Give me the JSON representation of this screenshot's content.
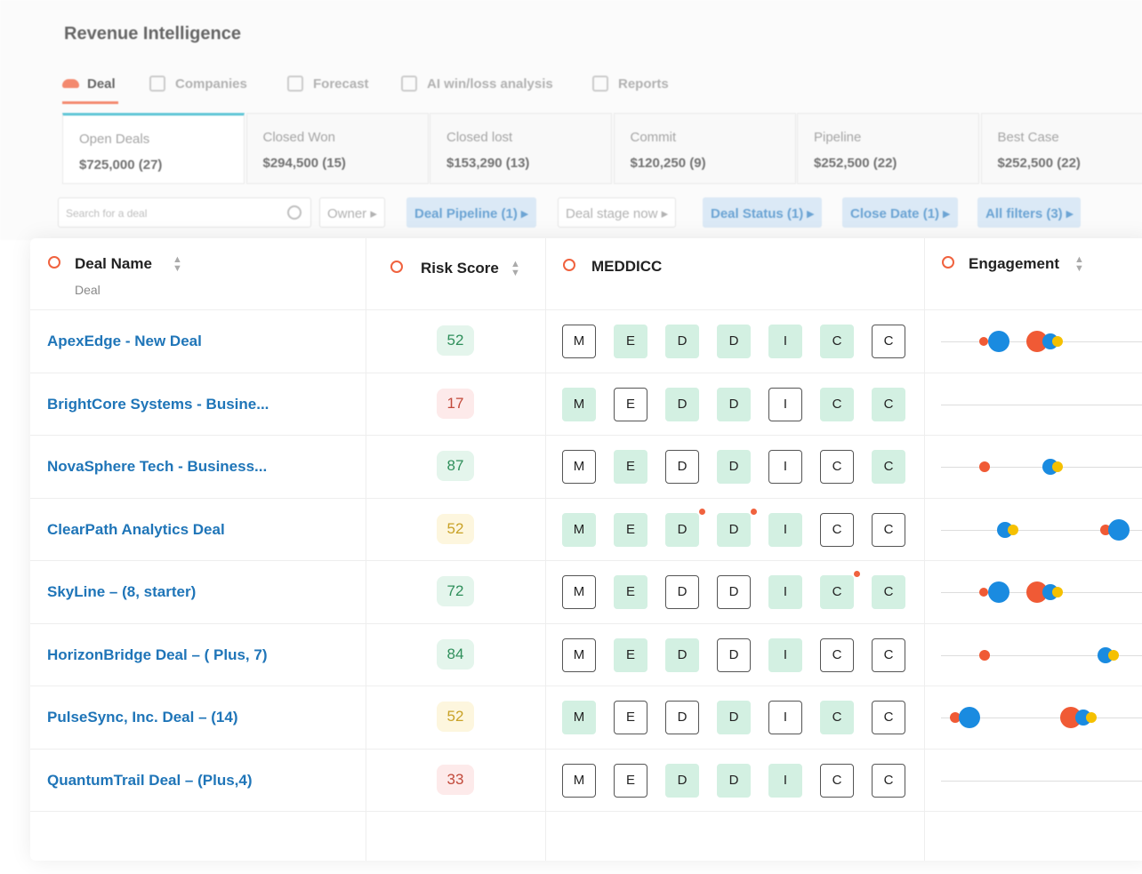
{
  "header": {
    "title": "Revenue Intelligence"
  },
  "tabs": [
    "Deal",
    "Companies",
    "Forecast",
    "AI win/loss analysis",
    "Reports"
  ],
  "active_tab": 0,
  "cards": [
    {
      "label": "Open Deals",
      "value": "$725,000 (27)"
    },
    {
      "label": "Closed Won",
      "value": "$294,500 (15)"
    },
    {
      "label": "Closed lost",
      "value": "$153,290 (13)"
    },
    {
      "label": "Commit",
      "value": "$120,250 (9)"
    },
    {
      "label": "Pipeline",
      "value": "$252,500 (22)"
    },
    {
      "label": "Best Case",
      "value": "$252,500 (22)"
    }
  ],
  "filters": {
    "search": "Search for a deal",
    "buttons": [
      {
        "label": "Owner",
        "active": false
      },
      {
        "label": "Deal Pipeline (1)",
        "active": true
      },
      {
        "label": "Deal stage now",
        "active": false
      },
      {
        "label": "Deal Status (1)",
        "active": true
      },
      {
        "label": "Close Date (1)",
        "active": true
      },
      {
        "label": "All filters (3)",
        "active": true
      }
    ]
  },
  "table": {
    "columns": [
      {
        "label": "Deal Name",
        "sub": "Deal"
      },
      {
        "label": "Risk Score"
      },
      {
        "label": "MEDDICC"
      },
      {
        "label": "Engagement"
      }
    ],
    "rows": [
      {
        "name": "ApexEdge - New Deal",
        "risk": 52,
        "risk_level": "good",
        "meddicc": [
          "M",
          "E",
          "D",
          "D",
          "I",
          "C",
          "C"
        ],
        "done": [
          0,
          1,
          1,
          1,
          1,
          1,
          0
        ],
        "flag": [
          0,
          0,
          0,
          0,
          0,
          0,
          0
        ]
      },
      {
        "name": "BrightCore Systems - Busine...",
        "risk": 17,
        "risk_level": "bad",
        "meddicc": [
          "M",
          "E",
          "D",
          "D",
          "I",
          "C",
          "C"
        ],
        "done": [
          1,
          0,
          1,
          1,
          0,
          1,
          1
        ],
        "flag": [
          0,
          0,
          0,
          0,
          0,
          0,
          0
        ]
      },
      {
        "name": "NovaSphere Tech - Business...",
        "risk": 87,
        "risk_level": "good",
        "meddicc": [
          "M",
          "E",
          "D",
          "D",
          "I",
          "C",
          "C"
        ],
        "done": [
          0,
          1,
          0,
          1,
          0,
          0,
          1
        ],
        "flag": [
          0,
          0,
          0,
          0,
          0,
          0,
          0
        ]
      },
      {
        "name": "ClearPath Analytics Deal",
        "risk": 52,
        "risk_level": "warn",
        "meddicc": [
          "M",
          "E",
          "D",
          "D",
          "I",
          "C",
          "C"
        ],
        "done": [
          1,
          1,
          1,
          1,
          1,
          0,
          0
        ],
        "flag": [
          0,
          0,
          1,
          1,
          0,
          0,
          0
        ]
      },
      {
        "name": "SkyLine – (8, starter)",
        "risk": 72,
        "risk_level": "good",
        "meddicc": [
          "M",
          "E",
          "D",
          "D",
          "I",
          "C",
          "C"
        ],
        "done": [
          0,
          1,
          0,
          0,
          1,
          1,
          1
        ],
        "flag": [
          0,
          0,
          0,
          0,
          0,
          1,
          0
        ]
      },
      {
        "name": "HorizonBridge Deal – ( Plus, 7)",
        "risk": 84,
        "risk_level": "good",
        "meddicc": [
          "M",
          "E",
          "D",
          "D",
          "I",
          "C",
          "C"
        ],
        "done": [
          0,
          1,
          1,
          0,
          1,
          0,
          0
        ],
        "flag": [
          0,
          0,
          0,
          0,
          0,
          0,
          0
        ]
      },
      {
        "name": "PulseSync, Inc. Deal – (14)",
        "risk": 52,
        "risk_level": "warn",
        "meddicc": [
          "M",
          "E",
          "D",
          "D",
          "I",
          "C",
          "C"
        ],
        "done": [
          1,
          0,
          0,
          1,
          0,
          1,
          0
        ],
        "flag": [
          0,
          0,
          0,
          0,
          0,
          0,
          0
        ]
      },
      {
        "name": "QuantumTrail Deal – (Plus,4)",
        "risk": 33,
        "risk_level": "bad",
        "meddicc": [
          "M",
          "E",
          "D",
          "D",
          "I",
          "C",
          "C"
        ],
        "done": [
          0,
          0,
          1,
          1,
          1,
          0,
          0
        ],
        "flag": [
          0,
          0,
          0,
          0,
          0,
          0,
          0
        ]
      }
    ]
  }
}
